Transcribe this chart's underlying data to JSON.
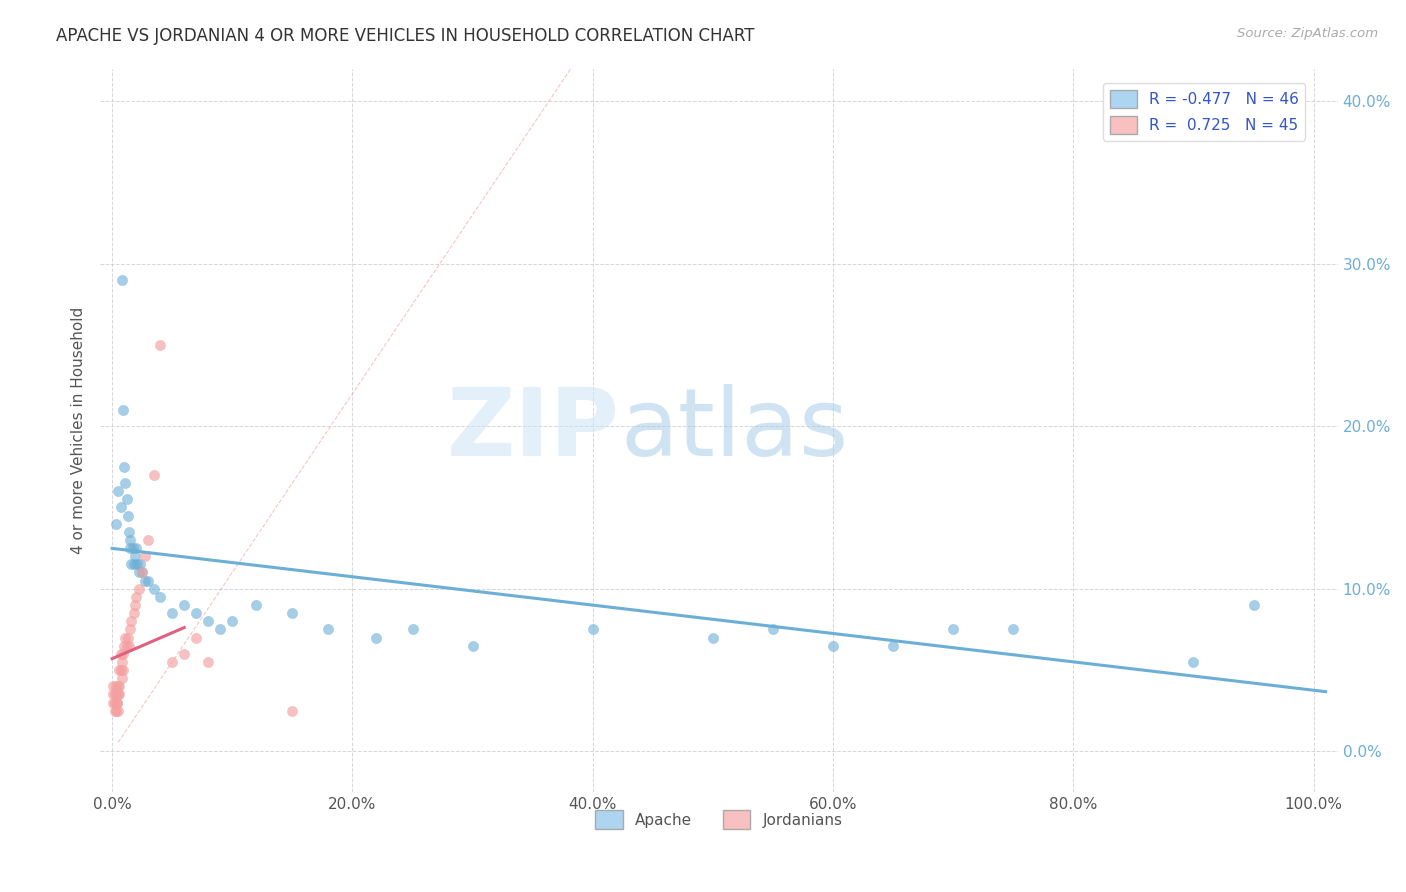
{
  "title": "APACHE VS JORDANIAN 4 OR MORE VEHICLES IN HOUSEHOLD CORRELATION CHART",
  "source_text": "Source: ZipAtlas.com",
  "ylabel": "4 or more Vehicles in Household",
  "xlim": [
    -0.01,
    1.02
  ],
  "ylim": [
    -0.025,
    0.42
  ],
  "xticks": [
    0.0,
    0.2,
    0.4,
    0.6,
    0.8,
    1.0
  ],
  "yticks": [
    0.0,
    0.1,
    0.2,
    0.3,
    0.4
  ],
  "xtick_labels": [
    "0.0%",
    "20.0%",
    "40.0%",
    "60.0%",
    "80.0%",
    "100.0%"
  ],
  "ytick_labels": [
    "0.0%",
    "10.0%",
    "20.0%",
    "30.0%",
    "40.0%"
  ],
  "apache_color": "#6baed6",
  "jordanian_color": "#f4a0a0",
  "jordanian_line_color": "#e06080",
  "apache_R": -0.477,
  "apache_N": 46,
  "jordanian_R": 0.725,
  "jordanian_N": 45,
  "watermark_zip": "ZIP",
  "watermark_atlas": "atlas",
  "background_color": "#ffffff",
  "grid_color": "#cccccc",
  "apache_x": [
    0.003,
    0.005,
    0.007,
    0.008,
    0.009,
    0.01,
    0.011,
    0.012,
    0.013,
    0.014,
    0.015,
    0.015,
    0.016,
    0.017,
    0.018,
    0.019,
    0.02,
    0.021,
    0.022,
    0.023,
    0.025,
    0.027,
    0.03,
    0.035,
    0.04,
    0.05,
    0.06,
    0.07,
    0.08,
    0.09,
    0.1,
    0.12,
    0.15,
    0.18,
    0.22,
    0.25,
    0.3,
    0.4,
    0.5,
    0.55,
    0.6,
    0.65,
    0.7,
    0.75,
    0.9,
    0.95
  ],
  "apache_y": [
    0.14,
    0.16,
    0.15,
    0.29,
    0.21,
    0.175,
    0.165,
    0.155,
    0.145,
    0.135,
    0.13,
    0.125,
    0.115,
    0.125,
    0.115,
    0.12,
    0.125,
    0.115,
    0.11,
    0.115,
    0.11,
    0.105,
    0.105,
    0.1,
    0.095,
    0.085,
    0.09,
    0.085,
    0.08,
    0.075,
    0.08,
    0.09,
    0.085,
    0.075,
    0.07,
    0.075,
    0.065,
    0.075,
    0.07,
    0.075,
    0.065,
    0.065,
    0.075,
    0.075,
    0.055,
    0.09
  ],
  "jordanian_x": [
    0.001,
    0.001,
    0.001,
    0.002,
    0.002,
    0.002,
    0.003,
    0.003,
    0.003,
    0.004,
    0.004,
    0.004,
    0.005,
    0.005,
    0.005,
    0.006,
    0.006,
    0.006,
    0.007,
    0.007,
    0.008,
    0.008,
    0.009,
    0.009,
    0.01,
    0.011,
    0.012,
    0.013,
    0.014,
    0.015,
    0.016,
    0.018,
    0.019,
    0.02,
    0.022,
    0.025,
    0.027,
    0.03,
    0.035,
    0.04,
    0.05,
    0.06,
    0.07,
    0.08,
    0.15
  ],
  "jordanian_y": [
    0.04,
    0.035,
    0.03,
    0.025,
    0.03,
    0.035,
    0.04,
    0.03,
    0.025,
    0.03,
    0.035,
    0.03,
    0.04,
    0.035,
    0.025,
    0.05,
    0.04,
    0.035,
    0.06,
    0.05,
    0.055,
    0.045,
    0.06,
    0.05,
    0.065,
    0.07,
    0.065,
    0.07,
    0.065,
    0.075,
    0.08,
    0.085,
    0.09,
    0.095,
    0.1,
    0.11,
    0.12,
    0.13,
    0.17,
    0.25,
    0.055,
    0.06,
    0.07,
    0.055,
    0.025
  ]
}
